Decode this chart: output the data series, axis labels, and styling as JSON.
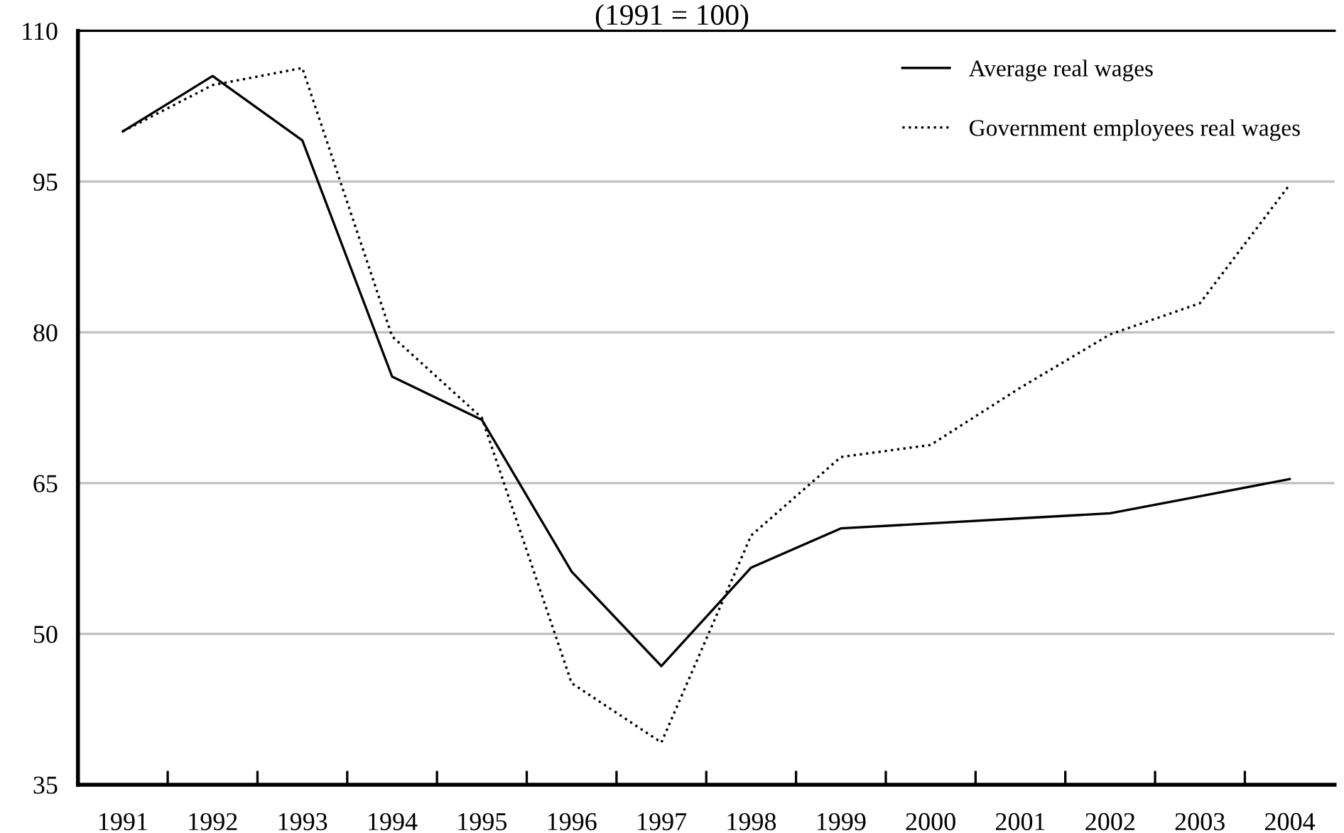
{
  "chart_data": {
    "type": "line",
    "title": "(1991 = 100)",
    "categories": [
      "1991",
      "1992",
      "1993",
      "1994",
      "1995",
      "1996",
      "1997",
      "1998",
      "1999",
      "2000",
      "2001",
      "2002",
      "2003",
      "2004"
    ],
    "series": [
      {
        "name": "Average real wages",
        "color": "#000000",
        "line_style": "solid",
        "values": [
          100,
          105.5,
          99.1,
          75.6,
          71.3,
          56.2,
          46.8,
          56.6,
          60.5,
          61.0,
          61.5,
          62.0,
          63.7,
          65.4
        ]
      },
      {
        "name": "Government employees real wages",
        "color": "#000000",
        "line_style": "dotted",
        "values": [
          100,
          104.6,
          106.3,
          79.6,
          71.5,
          45.1,
          39.2,
          59.8,
          67.6,
          68.8,
          74.5,
          79.8,
          82.9,
          94.7
        ]
      }
    ],
    "ylim": [
      35,
      110
    ],
    "yticks": [
      35,
      50,
      65,
      80,
      95,
      110
    ],
    "grid": "y",
    "legend": "top right",
    "marker": "none"
  }
}
